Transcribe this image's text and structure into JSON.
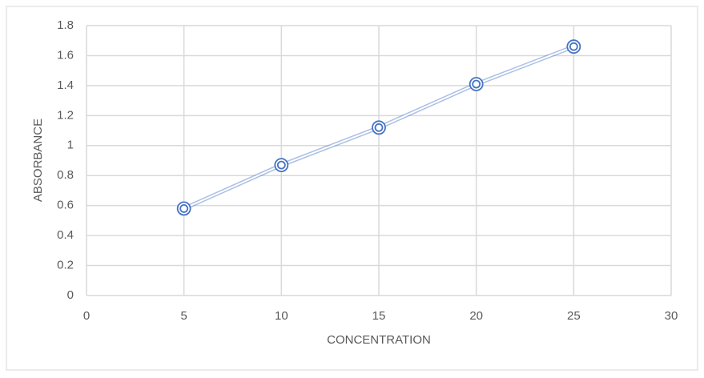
{
  "chart_data": {
    "type": "line",
    "x_label": "CONCENTRATION",
    "y_label": "ABSORBANCE",
    "x": [
      5,
      10,
      15,
      20,
      25
    ],
    "series": [
      {
        "color": "#4472c4",
        "values": [
          0.58,
          0.87,
          1.12,
          1.41,
          1.66
        ]
      }
    ],
    "xlim": [
      0,
      30
    ],
    "xticks": [
      0,
      5,
      10,
      15,
      20,
      25,
      30
    ],
    "ylim": [
      0,
      1.8
    ],
    "yticks": [
      0,
      0.2,
      0.4,
      0.6,
      0.8,
      1,
      1.2,
      1.4,
      1.6,
      1.8
    ],
    "grid": true
  }
}
